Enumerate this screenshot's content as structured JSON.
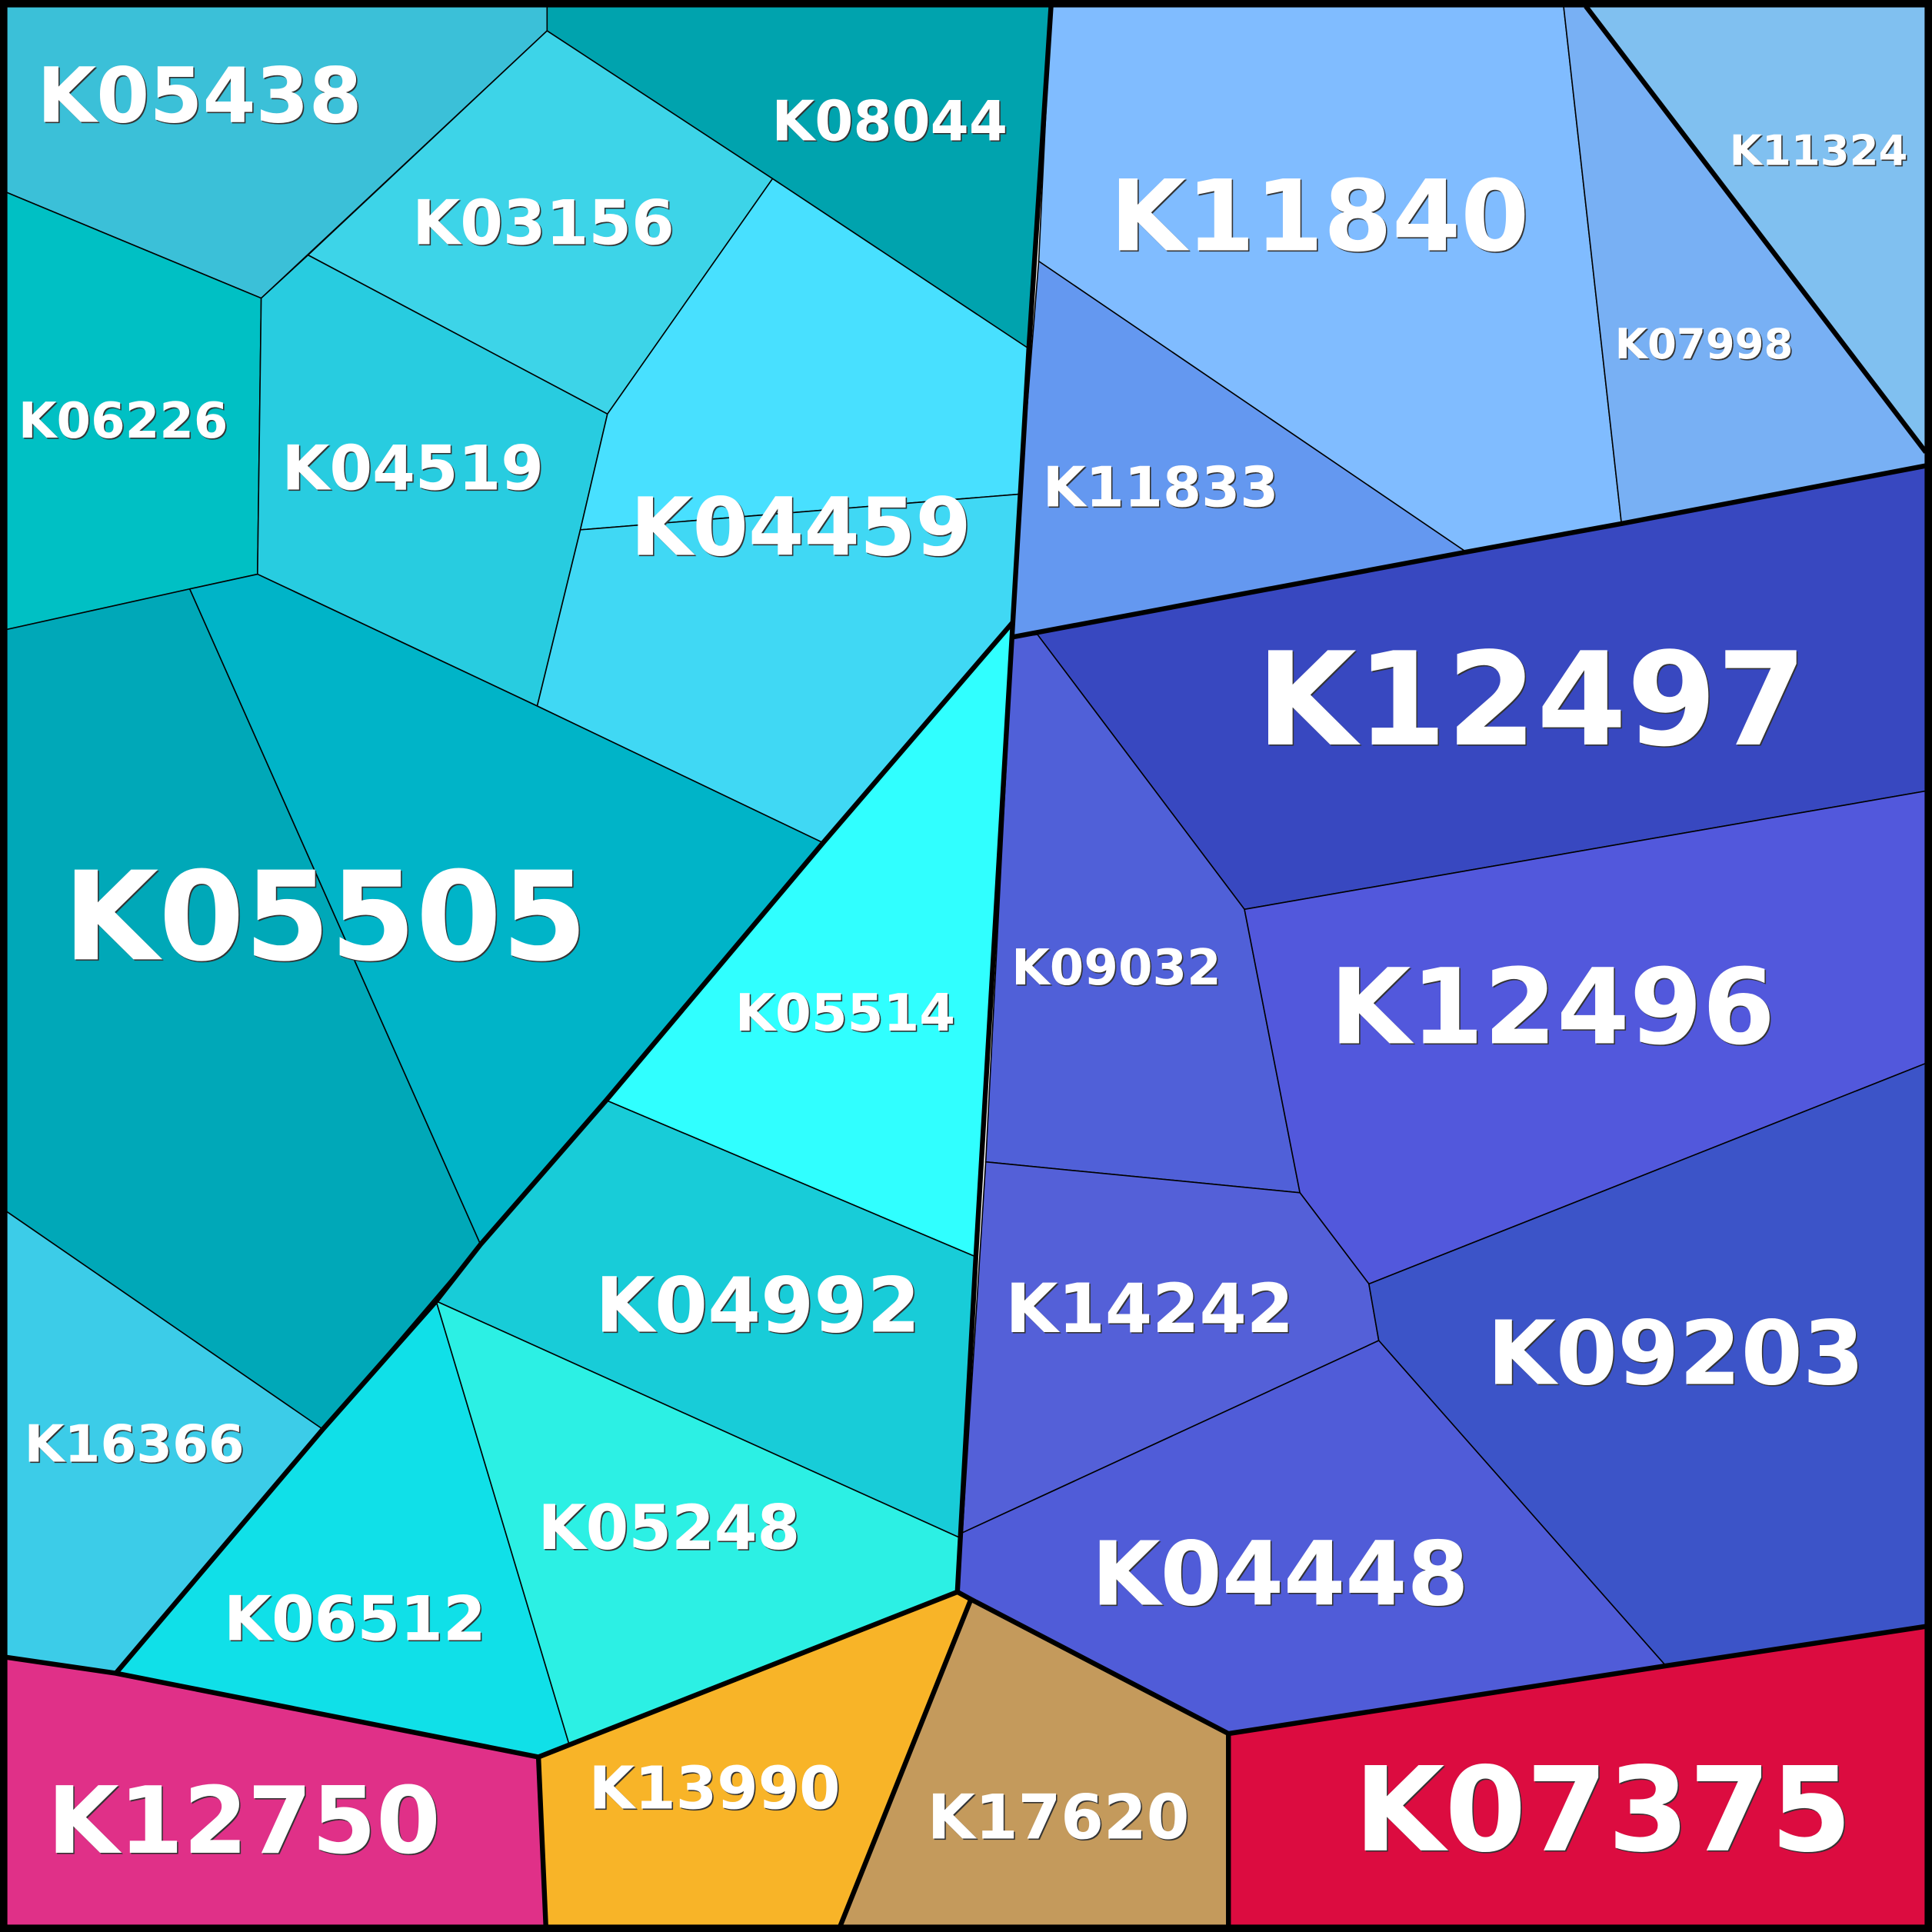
{
  "cells": [
    {
      "label": "K05438"
    },
    {
      "label": "K08044"
    },
    {
      "label": "K03156"
    },
    {
      "label": "K06226"
    },
    {
      "label": "K04519"
    },
    {
      "label": "K04459"
    },
    {
      "label": "K05505"
    },
    {
      "label": "K16366"
    },
    {
      "label": "K05514"
    },
    {
      "label": "K04992"
    },
    {
      "label": "K06512"
    },
    {
      "label": "K05248"
    },
    {
      "label": "K12750"
    },
    {
      "label": "K13990"
    },
    {
      "label": "K17620"
    },
    {
      "label": "K07375"
    },
    {
      "label": "K11840"
    },
    {
      "label": "K11324"
    },
    {
      "label": "K07998"
    },
    {
      "label": "K11833"
    },
    {
      "label": "K12497"
    },
    {
      "label": "K09032"
    },
    {
      "label": "K12496"
    },
    {
      "label": "K14242"
    },
    {
      "label": "K09203"
    },
    {
      "label": "K04448"
    }
  ]
}
